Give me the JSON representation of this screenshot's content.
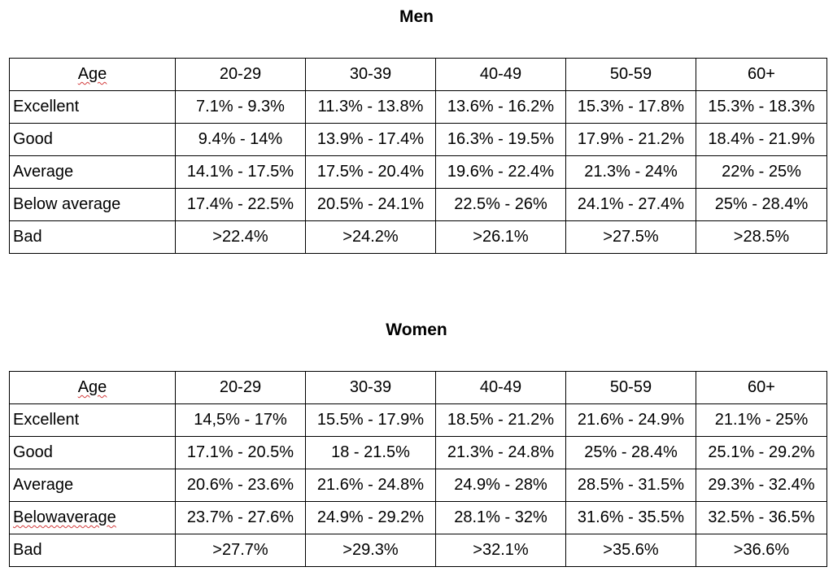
{
  "men": {
    "title": "Men",
    "header": [
      "Age",
      "20-29",
      "30-39",
      "40-49",
      "50-59",
      "60+"
    ],
    "rows": [
      {
        "label": "Excellent",
        "values": [
          "7.1% - 9.3%",
          "11.3% - 13.8%",
          "13.6% - 16.2%",
          "15.3% - 17.8%",
          "15.3% - 18.3%"
        ]
      },
      {
        "label": "Good",
        "values": [
          "9.4% - 14%",
          "13.9% - 17.4%",
          "16.3% - 19.5%",
          "17.9% - 21.2%",
          "18.4% - 21.9%"
        ]
      },
      {
        "label": "Average",
        "values": [
          "14.1% - 17.5%",
          "17.5% - 20.4%",
          "19.6% - 22.4%",
          "21.3% - 24%",
          "22% - 25%"
        ]
      },
      {
        "label": "Below average",
        "values": [
          "17.4% - 22.5%",
          "20.5% - 24.1%",
          "22.5% - 26%",
          "24.1% - 27.4%",
          "25% - 28.4%"
        ]
      },
      {
        "label": "Bad",
        "values": [
          ">22.4%",
          ">24.2%",
          ">26.1%",
          ">27.5%",
          ">28.5%"
        ]
      }
    ]
  },
  "women": {
    "title": "Women",
    "header": [
      "Age",
      "20-29",
      "30-39",
      "40-49",
      "50-59",
      "60+"
    ],
    "rows": [
      {
        "label": "Excellent",
        "values": [
          "14,5% - 17%",
          "15.5% - 17.9%",
          "18.5% - 21.2%",
          "21.6% - 24.9%",
          "21.1% - 25%"
        ]
      },
      {
        "label": "Good",
        "values": [
          "17.1% - 20.5%",
          "18 - 21.5%",
          "21.3% - 24.8%",
          "25% - 28.4%",
          "25.1% - 29.2%"
        ]
      },
      {
        "label": "Average",
        "values": [
          "20.6% - 23.6%",
          "21.6% - 24.8%",
          "24.9% - 28%",
          "28.5% - 31.5%",
          "29.3% - 32.4%"
        ]
      },
      {
        "label": "Belowaverage",
        "values": [
          "23.7% - 27.6%",
          "24.9% - 29.2%",
          "28.1% - 32%",
          "31.6% - 35.5%",
          "32.5% - 36.5%"
        ]
      },
      {
        "label": "Bad",
        "values": [
          ">27.7%",
          ">29.3%",
          ">32.1%",
          ">35.6%",
          ">36.6%"
        ]
      }
    ]
  },
  "colors": {
    "spellcheck_underline": "#d23a3a",
    "border": "#000000"
  }
}
